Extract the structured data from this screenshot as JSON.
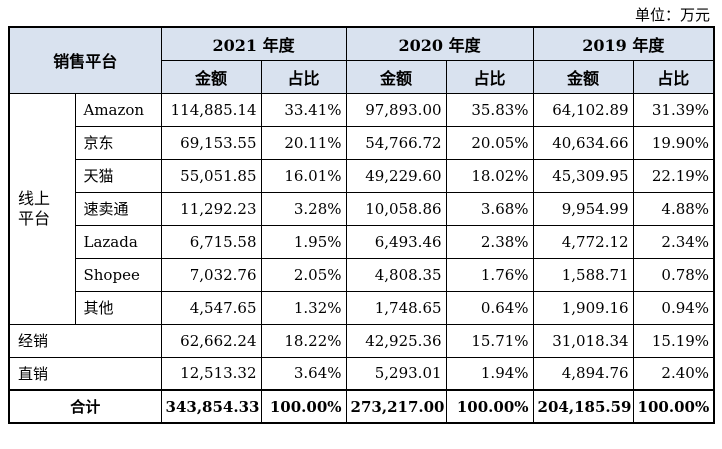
{
  "unit_label": "单位：万元",
  "header": {
    "platform": "销售平台",
    "years": [
      "2021 年度",
      "2020 年度",
      "2019 年度"
    ],
    "amount": "金额",
    "ratio": "占比"
  },
  "online_label_1": "线上",
  "online_label_2": "平台",
  "online_rows": [
    {
      "name": "Amazon",
      "v": [
        "114,885.14",
        "33.41%",
        "97,893.00",
        "35.83%",
        "64,102.89",
        "31.39%"
      ]
    },
    {
      "name": "京东",
      "v": [
        "69,153.55",
        "20.11%",
        "54,766.72",
        "20.05%",
        "40,634.66",
        "19.90%"
      ]
    },
    {
      "name": "天猫",
      "v": [
        "55,051.85",
        "16.01%",
        "49,229.60",
        "18.02%",
        "45,309.95",
        "22.19%"
      ]
    },
    {
      "name": "速卖通",
      "v": [
        "11,292.23",
        "3.28%",
        "10,058.86",
        "3.68%",
        "9,954.99",
        "4.88%"
      ]
    },
    {
      "name": "Lazada",
      "v": [
        "6,715.58",
        "1.95%",
        "6,493.46",
        "2.38%",
        "4,772.12",
        "2.34%"
      ]
    },
    {
      "name": "Shopee",
      "v": [
        "7,032.76",
        "2.05%",
        "4,808.35",
        "1.76%",
        "1,588.71",
        "0.78%"
      ]
    },
    {
      "name": "其他",
      "v": [
        "4,547.65",
        "1.32%",
        "1,748.65",
        "0.64%",
        "1,909.16",
        "0.94%"
      ]
    }
  ],
  "other_rows": [
    {
      "name": "经销",
      "v": [
        "62,662.24",
        "18.22%",
        "42,925.36",
        "15.71%",
        "31,018.34",
        "15.19%"
      ]
    },
    {
      "name": "直销",
      "v": [
        "12,513.32",
        "3.64%",
        "5,293.01",
        "1.94%",
        "4,894.76",
        "2.40%"
      ]
    }
  ],
  "total": {
    "name": "合计",
    "v": [
      "343,854.33",
      "100.00%",
      "273,217.00",
      "100.00%",
      "204,185.59",
      "100.00%"
    ]
  }
}
